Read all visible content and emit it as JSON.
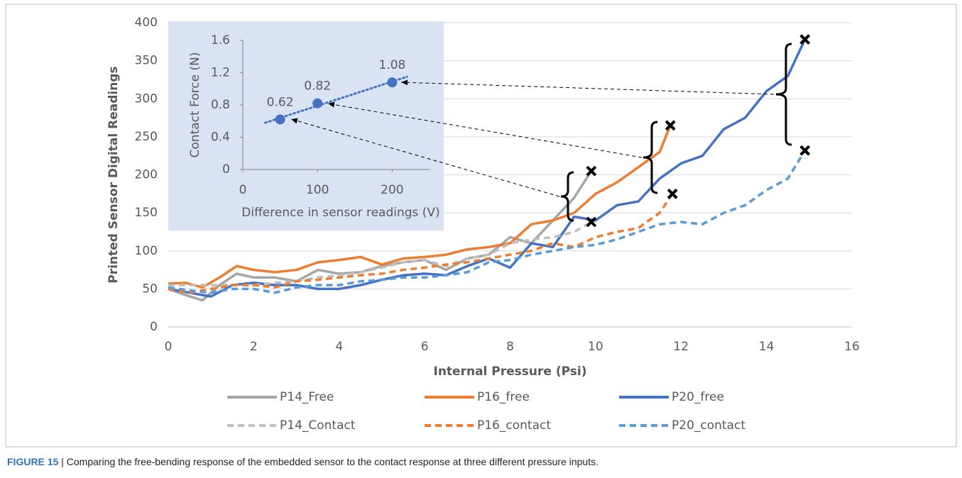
{
  "chart_data": [
    {
      "type": "line",
      "x_label": "Internal Pressure (Psi)",
      "y_label": "Printed Sensor Digital Readings",
      "xlim": [
        0,
        16
      ],
      "xticks": [
        0,
        2,
        4,
        6,
        8,
        10,
        12,
        14,
        16
      ],
      "ylim": [
        0,
        400
      ],
      "yticks": [
        0,
        50,
        100,
        150,
        200,
        250,
        300,
        350,
        400
      ],
      "grid": true,
      "legend": "bottom",
      "series": [
        {
          "name": "P14_Free",
          "color": "#a5a5a5",
          "dashed": false,
          "x": [
            0,
            0.4,
            0.8,
            1.2,
            1.6,
            2,
            2.5,
            3,
            3.5,
            4,
            4.5,
            5,
            5.5,
            6,
            6.5,
            7,
            7.5,
            8,
            8.5,
            9,
            9.5,
            9.9
          ],
          "values": [
            50,
            42,
            35,
            55,
            70,
            65,
            65,
            60,
            75,
            70,
            72,
            80,
            85,
            88,
            75,
            90,
            95,
            118,
            110,
            140,
            170,
            205
          ]
        },
        {
          "name": "P16_free",
          "color": "#ed7d31",
          "dashed": false,
          "x": [
            0,
            0.4,
            0.8,
            1.2,
            1.6,
            2,
            2.5,
            3,
            3.5,
            4,
            4.5,
            5,
            5.5,
            6,
            6.5,
            7,
            7.5,
            8,
            8.5,
            9,
            9.5,
            10,
            10.5,
            11,
            11.5,
            11.75
          ],
          "values": [
            57,
            58,
            52,
            65,
            80,
            75,
            72,
            75,
            85,
            88,
            92,
            82,
            90,
            92,
            95,
            102,
            105,
            110,
            135,
            140,
            150,
            175,
            190,
            210,
            230,
            265
          ]
        },
        {
          "name": "P20_free",
          "color": "#4472c4",
          "dashed": false,
          "x": [
            0,
            0.5,
            1,
            1.5,
            2,
            2.5,
            3,
            3.5,
            4,
            4.5,
            5,
            5.5,
            6,
            6.5,
            7,
            7.5,
            8,
            8.5,
            9,
            9.5,
            10,
            10.5,
            11,
            11.5,
            12,
            12.5,
            13,
            13.5,
            14,
            14.5,
            14.9
          ],
          "values": [
            50,
            45,
            40,
            55,
            58,
            55,
            55,
            50,
            50,
            55,
            62,
            68,
            70,
            68,
            80,
            90,
            78,
            110,
            105,
            145,
            140,
            160,
            165,
            195,
            215,
            225,
            260,
            275,
            310,
            330,
            378
          ]
        },
        {
          "name": "P14_Contact",
          "color": "#bfbfbf",
          "dashed": true,
          "x": [
            0,
            0.5,
            1,
            1.5,
            2,
            2.5,
            3,
            3.5,
            4,
            4.5,
            5,
            5.5,
            6,
            6.5,
            7,
            7.5,
            8,
            8.5,
            9,
            9.5,
            9.9
          ],
          "values": [
            55,
            55,
            55,
            55,
            55,
            58,
            60,
            65,
            68,
            72,
            78,
            85,
            88,
            80,
            90,
            95,
            110,
            115,
            118,
            125,
            138
          ]
        },
        {
          "name": "P16_contact",
          "color": "#ed7d31",
          "dashed": true,
          "x": [
            0,
            0.5,
            1,
            1.5,
            2,
            2.5,
            3,
            3.5,
            4,
            4.5,
            5,
            5.5,
            6,
            6.5,
            7,
            7.5,
            8,
            8.5,
            9,
            9.5,
            10,
            10.5,
            11,
            11.5,
            11.8
          ],
          "values": [
            50,
            45,
            50,
            55,
            55,
            52,
            60,
            62,
            65,
            68,
            70,
            75,
            78,
            82,
            85,
            90,
            95,
            100,
            110,
            105,
            118,
            125,
            130,
            150,
            175
          ]
        },
        {
          "name": "P20_contact",
          "color": "#5b9bd5",
          "dashed": true,
          "x": [
            0,
            0.5,
            1,
            1.5,
            2,
            2.5,
            3,
            3.5,
            4,
            4.5,
            5,
            5.5,
            6,
            6.5,
            7,
            7.5,
            8,
            8.5,
            9,
            9.5,
            10,
            10.5,
            11,
            11.5,
            12,
            12.5,
            13,
            13.5,
            14,
            14.5,
            14.9
          ],
          "values": [
            52,
            48,
            45,
            50,
            50,
            45,
            52,
            55,
            55,
            60,
            62,
            65,
            65,
            68,
            72,
            85,
            88,
            95,
            100,
            105,
            108,
            115,
            125,
            135,
            138,
            135,
            150,
            160,
            180,
            195,
            232
          ]
        }
      ]
    },
    {
      "type": "scatter",
      "x_label": "Difference in sensor readings (V)",
      "y_label": "Contact Force (N)",
      "xlim": [
        0,
        250
      ],
      "xticks": [
        0,
        100,
        200
      ],
      "ylim": [
        0,
        1.6
      ],
      "yticks": [
        0,
        0.4,
        0.8,
        1.2,
        1.6
      ],
      "color": "#4472c4",
      "trendline": true,
      "x": [
        50,
        100,
        200
      ],
      "values": [
        0.62,
        0.82,
        1.08
      ]
    }
  ],
  "caption": {
    "label": "FIGURE 15",
    "text": "| Comparing the free-bending response of the embedded sensor to the contact response at three different pressure inputs."
  }
}
